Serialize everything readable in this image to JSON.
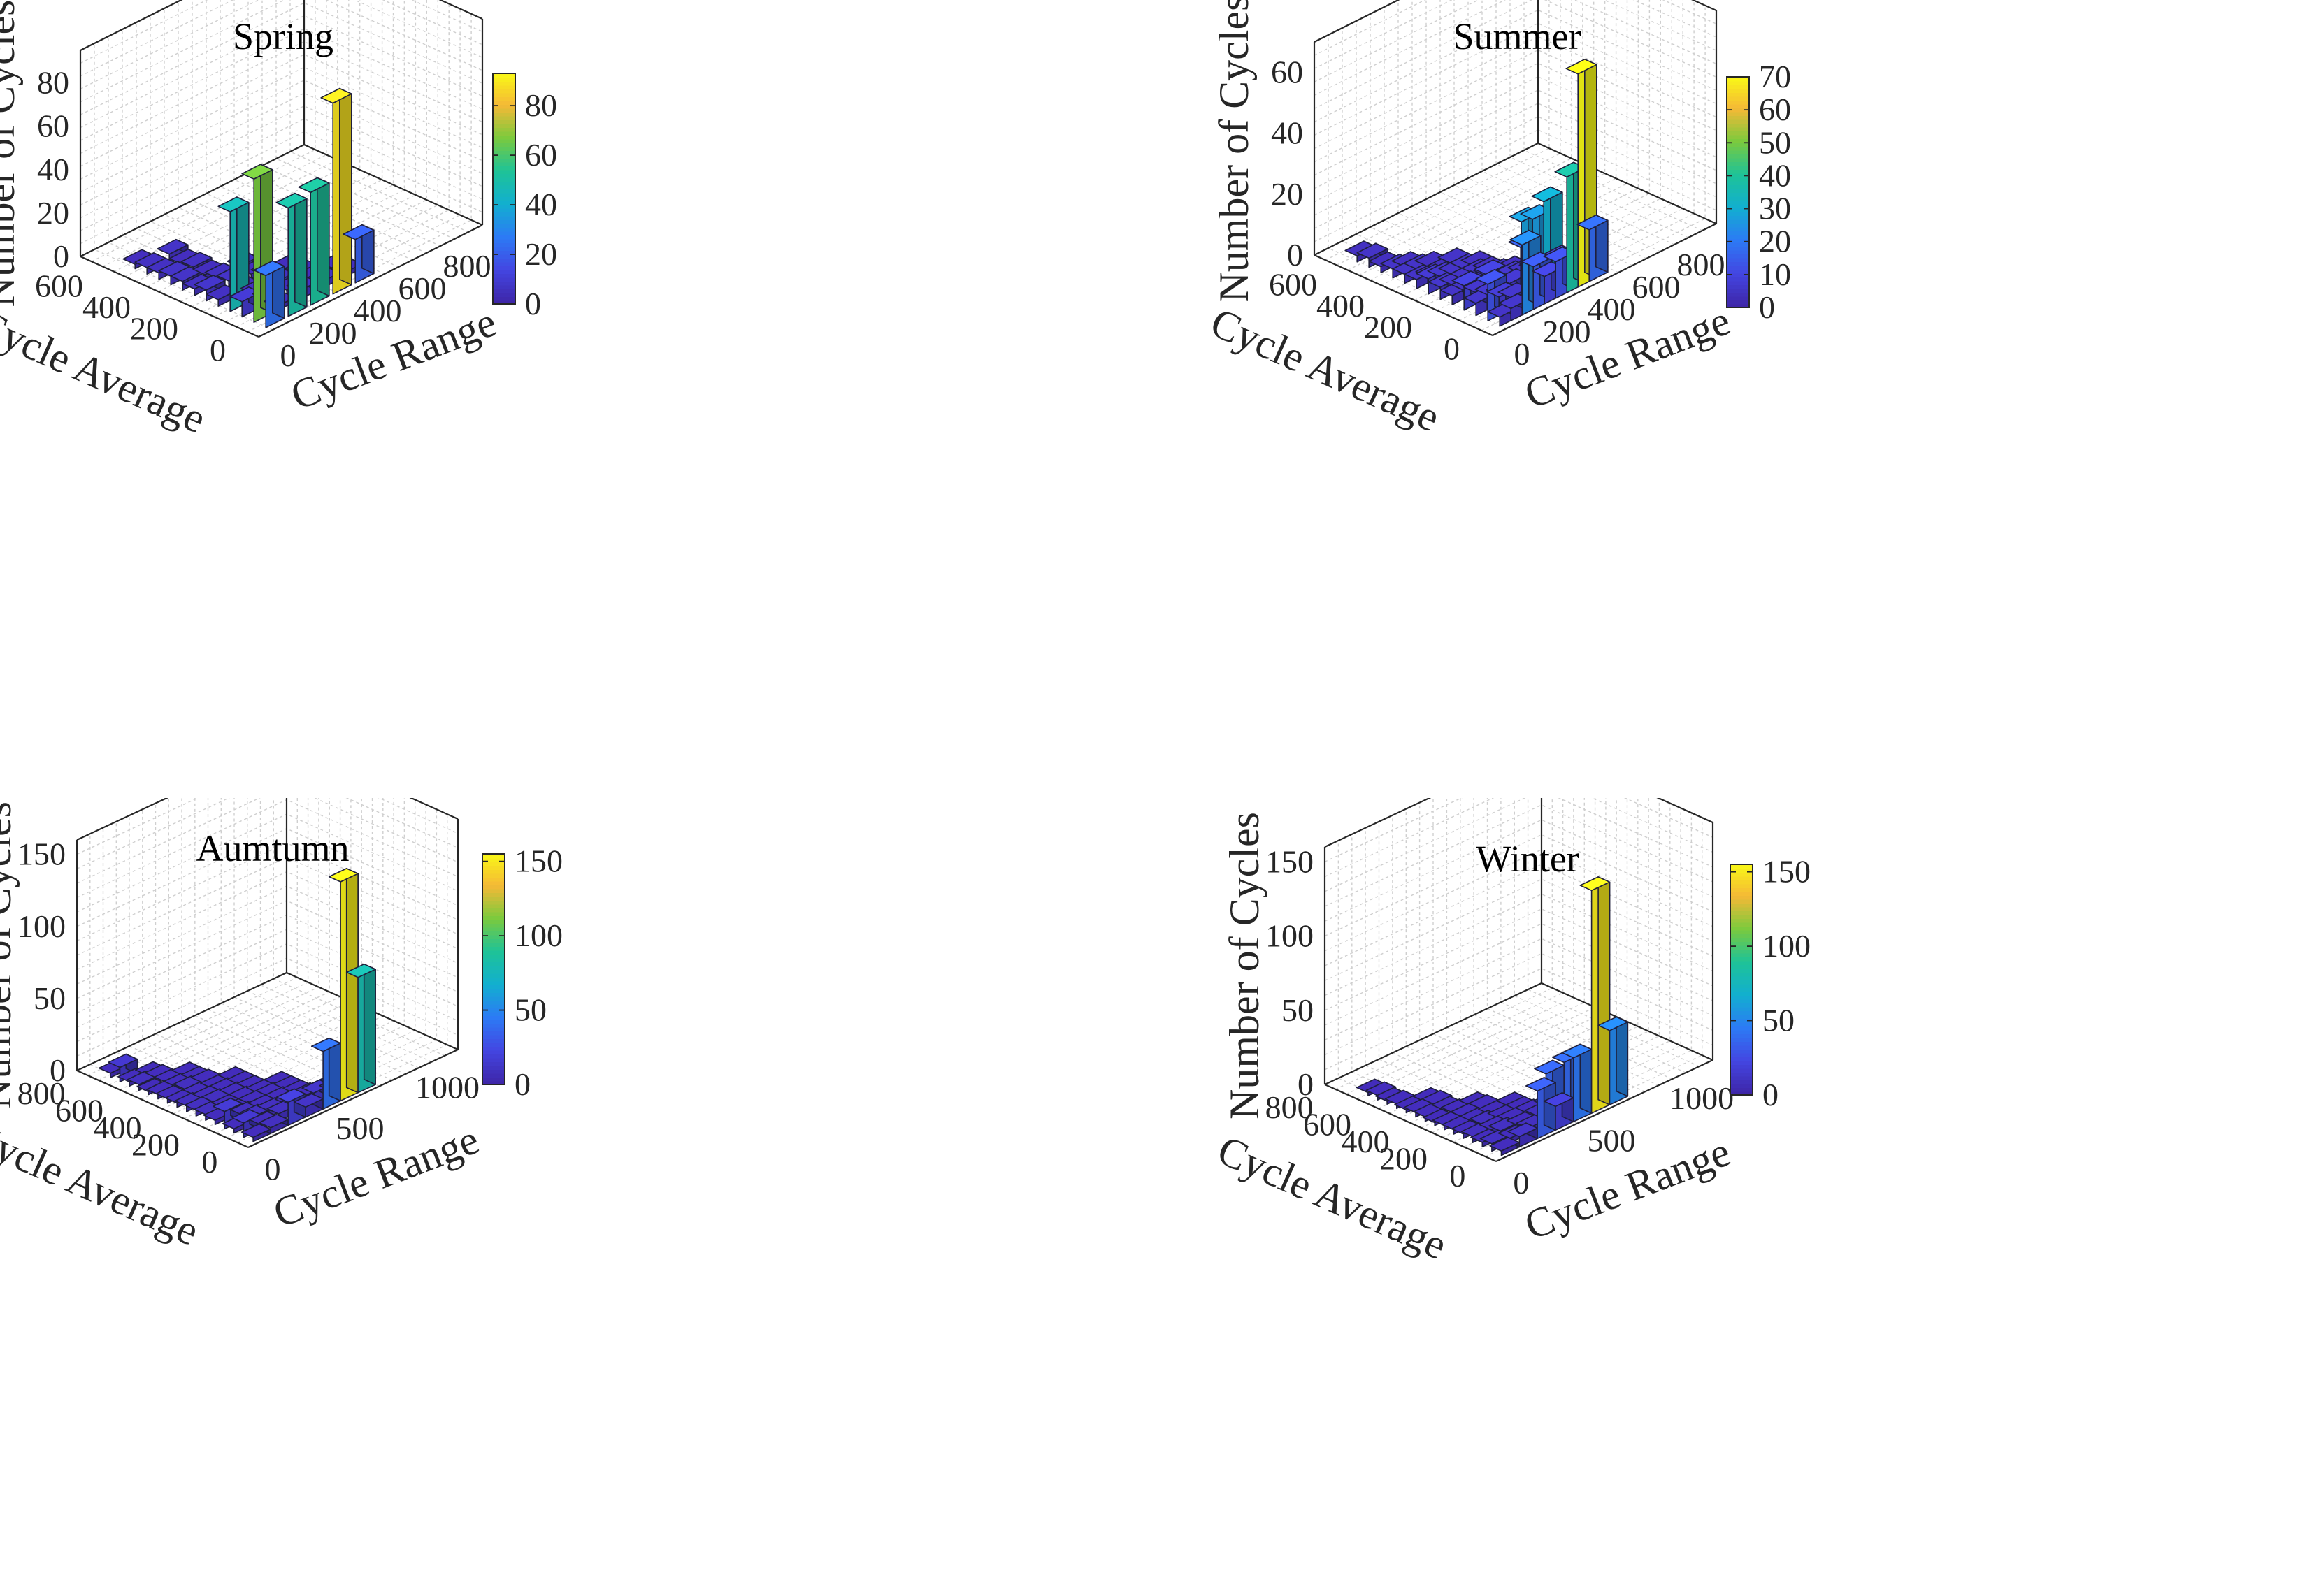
{
  "figure": {
    "axis_labels": {
      "z": "Number of Cycles",
      "x": "Cycle Range",
      "y": "Cycle Average"
    }
  },
  "colors": {
    "colormap_stops": [
      "#3e26a8",
      "#4346e2",
      "#2c7bf5",
      "#12afcf",
      "#1ec397",
      "#7bca3d",
      "#f5b936",
      "#f9fb15"
    ]
  },
  "chart_data": [
    {
      "type": "bar3",
      "title": "Spring",
      "xlabel": "Cycle Range",
      "ylabel": "Cycle Average",
      "zlabel": "Number of Cycles",
      "xlim": [
        -100,
        900
      ],
      "ylim": [
        -50,
        700
      ],
      "zlim": [
        0,
        95
      ],
      "xticks": [
        0,
        200,
        400,
        600,
        800
      ],
      "yticks": [
        0,
        200,
        400,
        600
      ],
      "zticks": [
        0,
        20,
        40,
        60,
        80
      ],
      "colorbar": {
        "min": 0,
        "max": 93,
        "ticks": [
          0,
          20,
          40,
          60,
          80
        ]
      },
      "bars": [
        [
          0,
          0,
          24
        ],
        [
          0,
          50,
          66
        ],
        [
          0,
          100,
          7
        ],
        [
          0,
          150,
          46
        ],
        [
          0,
          200,
          3
        ],
        [
          0,
          250,
          5
        ],
        [
          0,
          300,
          3
        ],
        [
          0,
          350,
          4
        ],
        [
          0,
          400,
          4
        ],
        [
          0,
          450,
          3
        ],
        [
          0,
          500,
          3
        ],
        [
          0,
          550,
          2
        ],
        [
          100,
          0,
          50
        ],
        [
          100,
          50,
          2
        ],
        [
          100,
          100,
          3
        ],
        [
          100,
          150,
          3
        ],
        [
          100,
          200,
          2
        ],
        [
          100,
          250,
          4
        ],
        [
          100,
          300,
          3
        ],
        [
          100,
          350,
          2
        ],
        [
          100,
          400,
          3
        ],
        [
          100,
          450,
          2
        ],
        [
          100,
          500,
          4
        ],
        [
          200,
          0,
          52
        ],
        [
          200,
          50,
          4
        ],
        [
          200,
          100,
          2
        ],
        [
          200,
          150,
          3
        ],
        [
          200,
          200,
          4
        ],
        [
          200,
          250,
          2
        ],
        [
          200,
          300,
          3
        ],
        [
          300,
          0,
          88
        ],
        [
          300,
          50,
          3
        ],
        [
          300,
          100,
          2
        ],
        [
          300,
          150,
          2
        ],
        [
          300,
          200,
          2
        ],
        [
          400,
          0,
          20
        ],
        [
          400,
          50,
          2
        ],
        [
          400,
          100,
          2
        ]
      ]
    },
    {
      "type": "bar3",
      "title": "Summer",
      "xlabel": "Cycle Range",
      "ylabel": "Cycle Average",
      "zlabel": "Number of Cycles",
      "xlim": [
        -100,
        900
      ],
      "ylim": [
        -50,
        700
      ],
      "zlim": [
        0,
        70
      ],
      "xticks": [
        0,
        200,
        400,
        600,
        800
      ],
      "yticks": [
        0,
        200,
        400,
        600
      ],
      "zticks": [
        0,
        20,
        40,
        60
      ],
      "colorbar": {
        "min": 0,
        "max": 70,
        "ticks": [
          0,
          10,
          20,
          30,
          40,
          50,
          60,
          70
        ]
      },
      "bars": [
        [
          0,
          0,
          3
        ],
        [
          0,
          50,
          12
        ],
        [
          0,
          100,
          4
        ],
        [
          0,
          150,
          8
        ],
        [
          0,
          200,
          3
        ],
        [
          0,
          250,
          4
        ],
        [
          0,
          300,
          5
        ],
        [
          0,
          350,
          3
        ],
        [
          0,
          400,
          3
        ],
        [
          0,
          450,
          3
        ],
        [
          0,
          500,
          2
        ],
        [
          0,
          550,
          3
        ],
        [
          0,
          600,
          2
        ],
        [
          50,
          0,
          4
        ],
        [
          50,
          50,
          6
        ],
        [
          50,
          100,
          5
        ],
        [
          50,
          150,
          4
        ],
        [
          50,
          200,
          3
        ],
        [
          50,
          250,
          3
        ],
        [
          50,
          300,
          4
        ],
        [
          50,
          350,
          2
        ],
        [
          50,
          400,
          3
        ],
        [
          50,
          450,
          2
        ],
        [
          100,
          0,
          23
        ],
        [
          100,
          50,
          4
        ],
        [
          100,
          100,
          3
        ],
        [
          100,
          150,
          8
        ],
        [
          100,
          200,
          3
        ],
        [
          100,
          250,
          3
        ],
        [
          100,
          300,
          3
        ],
        [
          100,
          350,
          2
        ],
        [
          100,
          400,
          2
        ],
        [
          150,
          0,
          14
        ],
        [
          150,
          50,
          27
        ],
        [
          150,
          100,
          5
        ],
        [
          150,
          150,
          3
        ],
        [
          150,
          200,
          4
        ],
        [
          150,
          250,
          3
        ],
        [
          150,
          300,
          3
        ],
        [
          150,
          350,
          3
        ],
        [
          200,
          0,
          9
        ],
        [
          200,
          50,
          26
        ],
        [
          200,
          100,
          15
        ],
        [
          200,
          150,
          4
        ],
        [
          200,
          200,
          3
        ],
        [
          200,
          250,
          2
        ],
        [
          200,
          300,
          2
        ],
        [
          250,
          0,
          12
        ],
        [
          250,
          50,
          30
        ],
        [
          250,
          100,
          6
        ],
        [
          250,
          150,
          3
        ],
        [
          250,
          200,
          2
        ],
        [
          300,
          0,
          38
        ],
        [
          300,
          50,
          9
        ],
        [
          300,
          100,
          3
        ],
        [
          300,
          150,
          2
        ],
        [
          350,
          0,
          70
        ],
        [
          350,
          50,
          4
        ],
        [
          350,
          100,
          2
        ],
        [
          400,
          0,
          17
        ],
        [
          400,
          50,
          3
        ]
      ]
    },
    {
      "type": "bar3",
      "title": "Aumtumn",
      "xlabel": "Cycle Range",
      "ylabel": "Cycle Average",
      "zlabel": "Number of Cycles",
      "xlim": [
        -100,
        1100
      ],
      "ylim": [
        -50,
        850
      ],
      "zlim": [
        0,
        160
      ],
      "xticks": [
        0,
        500,
        1000
      ],
      "yticks": [
        0,
        200,
        400,
        600,
        800
      ],
      "zticks": [
        0,
        50,
        100,
        150
      ],
      "colorbar": {
        "min": 0,
        "max": 155,
        "ticks": [
          0,
          50,
          100,
          150
        ]
      },
      "bars": [
        [
          0,
          0,
          3
        ],
        [
          0,
          50,
          10
        ],
        [
          0,
          100,
          3
        ],
        [
          0,
          150,
          12
        ],
        [
          0,
          200,
          3
        ],
        [
          0,
          250,
          4
        ],
        [
          0,
          300,
          4
        ],
        [
          0,
          350,
          4
        ],
        [
          0,
          400,
          3
        ],
        [
          0,
          450,
          3
        ],
        [
          0,
          500,
          3
        ],
        [
          0,
          550,
          2
        ],
        [
          0,
          600,
          4
        ],
        [
          0,
          650,
          3
        ],
        [
          0,
          700,
          10
        ],
        [
          0,
          750,
          3
        ],
        [
          100,
          0,
          4
        ],
        [
          100,
          50,
          3
        ],
        [
          100,
          100,
          5
        ],
        [
          100,
          150,
          4
        ],
        [
          100,
          200,
          3
        ],
        [
          100,
          250,
          3
        ],
        [
          100,
          300,
          4
        ],
        [
          100,
          350,
          3
        ],
        [
          100,
          400,
          3
        ],
        [
          100,
          450,
          4
        ],
        [
          100,
          500,
          3
        ],
        [
          100,
          550,
          3
        ],
        [
          100,
          600,
          3
        ],
        [
          100,
          650,
          2
        ],
        [
          200,
          0,
          16
        ],
        [
          200,
          50,
          5
        ],
        [
          200,
          100,
          4
        ],
        [
          200,
          150,
          3
        ],
        [
          200,
          200,
          3
        ],
        [
          200,
          250,
          3
        ],
        [
          200,
          300,
          3
        ],
        [
          200,
          350,
          3
        ],
        [
          200,
          400,
          2
        ],
        [
          200,
          450,
          3
        ],
        [
          200,
          500,
          2
        ],
        [
          200,
          550,
          2
        ],
        [
          300,
          0,
          7
        ],
        [
          300,
          50,
          4
        ],
        [
          300,
          100,
          3
        ],
        [
          300,
          150,
          3
        ],
        [
          300,
          200,
          3
        ],
        [
          300,
          250,
          2
        ],
        [
          300,
          300,
          2
        ],
        [
          300,
          350,
          2
        ],
        [
          300,
          400,
          2
        ],
        [
          400,
          0,
          40
        ],
        [
          400,
          50,
          8
        ],
        [
          400,
          100,
          3
        ],
        [
          400,
          150,
          2
        ],
        [
          400,
          200,
          2
        ],
        [
          400,
          250,
          2
        ],
        [
          500,
          0,
          152
        ],
        [
          500,
          50,
          4
        ],
        [
          500,
          100,
          2
        ],
        [
          600,
          0,
          80
        ],
        [
          600,
          50,
          3
        ]
      ]
    },
    {
      "type": "bar3",
      "title": "Winter",
      "xlabel": "Cycle Range",
      "ylabel": "Cycle Average",
      "zlabel": "Number of Cycles",
      "xlim": [
        -100,
        1100
      ],
      "ylim": [
        -50,
        850
      ],
      "zlim": [
        0,
        160
      ],
      "xticks": [
        0,
        500,
        1000
      ],
      "yticks": [
        0,
        200,
        400,
        600,
        800
      ],
      "zticks": [
        0,
        50,
        100,
        150
      ],
      "colorbar": {
        "min": 0,
        "max": 155,
        "ticks": [
          0,
          50,
          100,
          150
        ]
      },
      "bars": [
        [
          0,
          0,
          3
        ],
        [
          0,
          50,
          5
        ],
        [
          0,
          100,
          3
        ],
        [
          0,
          150,
          4
        ],
        [
          0,
          200,
          3
        ],
        [
          0,
          250,
          3
        ],
        [
          0,
          300,
          3
        ],
        [
          0,
          350,
          2
        ],
        [
          0,
          400,
          3
        ],
        [
          0,
          450,
          3
        ],
        [
          0,
          500,
          2
        ],
        [
          0,
          550,
          3
        ],
        [
          0,
          600,
          2
        ],
        [
          0,
          650,
          3
        ],
        [
          0,
          700,
          2
        ],
        [
          100,
          0,
          7
        ],
        [
          100,
          50,
          3
        ],
        [
          100,
          100,
          5
        ],
        [
          100,
          150,
          3
        ],
        [
          100,
          200,
          4
        ],
        [
          100,
          250,
          3
        ],
        [
          100,
          300,
          3
        ],
        [
          100,
          350,
          3
        ],
        [
          100,
          400,
          2
        ],
        [
          100,
          450,
          3
        ],
        [
          100,
          500,
          2
        ],
        [
          200,
          0,
          32
        ],
        [
          200,
          50,
          4
        ],
        [
          200,
          100,
          3
        ],
        [
          200,
          150,
          3
        ],
        [
          200,
          200,
          2
        ],
        [
          200,
          250,
          2
        ],
        [
          200,
          300,
          3
        ],
        [
          200,
          350,
          2
        ],
        [
          300,
          0,
          16
        ],
        [
          300,
          50,
          35
        ],
        [
          300,
          100,
          4
        ],
        [
          300,
          150,
          3
        ],
        [
          300,
          200,
          2
        ],
        [
          300,
          250,
          2
        ],
        [
          400,
          0,
          43
        ],
        [
          400,
          50,
          37
        ],
        [
          400,
          100,
          3
        ],
        [
          400,
          150,
          2
        ],
        [
          500,
          0,
          150
        ],
        [
          500,
          50,
          3
        ],
        [
          500,
          100,
          2
        ],
        [
          600,
          0,
          50
        ],
        [
          600,
          50,
          3
        ]
      ]
    }
  ]
}
